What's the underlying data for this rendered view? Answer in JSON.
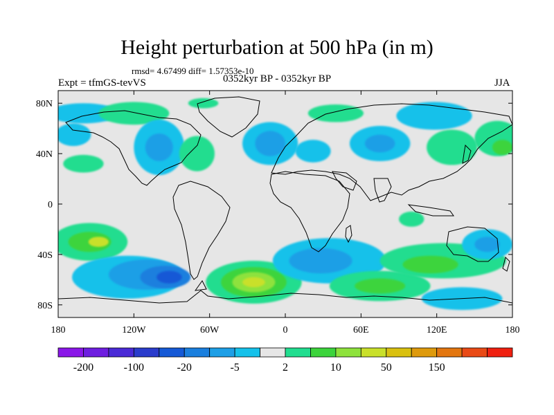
{
  "title": "Height perturbation at 500 hPa (in m)",
  "stats": "rmsd= 4.67499 diff= 1.57353e-10",
  "experiment": "Expt = tfmGS-tevVS",
  "period": "0352kyr BP - 0352kyr BP",
  "season": "JJA",
  "lat_ticks": [
    {
      "label": "80N",
      "lat": 80
    },
    {
      "label": "40N",
      "lat": 40
    },
    {
      "label": "0",
      "lat": 0
    },
    {
      "label": "40S",
      "lat": -40
    },
    {
      "label": "80S",
      "lat": -80
    }
  ],
  "lon_ticks": [
    {
      "label": "180",
      "lon": -180
    },
    {
      "label": "120W",
      "lon": -120
    },
    {
      "label": "60W",
      "lon": -60
    },
    {
      "label": "0",
      "lon": 0
    },
    {
      "label": "60E",
      "lon": 60
    },
    {
      "label": "120E",
      "lon": 120
    },
    {
      "label": "180",
      "lon": 180
    }
  ],
  "colorbar": {
    "colors": [
      "#8a17e8",
      "#6e1ee0",
      "#4a2ad6",
      "#2a3ccc",
      "#1559d6",
      "#1a7fde",
      "#1e9fe6",
      "#15c1ea",
      "#e6e6e6",
      "#21dd8f",
      "#3cd43c",
      "#8ee23c",
      "#c9e02a",
      "#d9c00f",
      "#de9a0c",
      "#e3760f",
      "#e94a16",
      "#ef2010"
    ],
    "labels": [
      {
        "text": "-200",
        "boundary": 1
      },
      {
        "text": "-100",
        "boundary": 3
      },
      {
        "text": "-20",
        "boundary": 5
      },
      {
        "text": "-5",
        "boundary": 7
      },
      {
        "text": "2",
        "boundary": 9
      },
      {
        "text": "10",
        "boundary": 11
      },
      {
        "text": "50",
        "boundary": 13
      },
      {
        "text": "150",
        "boundary": 15
      }
    ]
  },
  "anomalies": [
    {
      "lon": -160,
      "lat": 32,
      "rx": 16,
      "ry": 7,
      "color": "#21dd8f"
    },
    {
      "lon": -168,
      "lat": 55,
      "rx": 14,
      "ry": 9,
      "color": "#15c1ea"
    },
    {
      "lon": -160,
      "lat": 72,
      "rx": 28,
      "ry": 8,
      "color": "#15c1ea"
    },
    {
      "lon": -120,
      "lat": 72,
      "rx": 28,
      "ry": 9,
      "color": "#21dd8f"
    },
    {
      "lon": -100,
      "lat": 45,
      "rx": 20,
      "ry": 22,
      "color": "#15c1ea"
    },
    {
      "lon": -100,
      "lat": 45,
      "rx": 11,
      "ry": 11,
      "color": "#1e9fe6"
    },
    {
      "lon": -70,
      "lat": 40,
      "rx": 14,
      "ry": 14,
      "color": "#21dd8f"
    },
    {
      "lon": -65,
      "lat": 80,
      "rx": 12,
      "ry": 4,
      "color": "#21dd8f"
    },
    {
      "lon": -12,
      "lat": 48,
      "rx": 22,
      "ry": 17,
      "color": "#15c1ea"
    },
    {
      "lon": -12,
      "lat": 48,
      "rx": 12,
      "ry": 10,
      "color": "#1e9fe6"
    },
    {
      "lon": 22,
      "lat": 42,
      "rx": 14,
      "ry": 9,
      "color": "#15c1ea"
    },
    {
      "lon": 40,
      "lat": 72,
      "rx": 22,
      "ry": 7,
      "color": "#21dd8f"
    },
    {
      "lon": 75,
      "lat": 48,
      "rx": 24,
      "ry": 14,
      "color": "#15c1ea"
    },
    {
      "lon": 75,
      "lat": 48,
      "rx": 12,
      "ry": 7,
      "color": "#1e9fe6"
    },
    {
      "lon": 118,
      "lat": 70,
      "rx": 30,
      "ry": 11,
      "color": "#15c1ea"
    },
    {
      "lon": 132,
      "lat": 45,
      "rx": 20,
      "ry": 14,
      "color": "#21dd8f"
    },
    {
      "lon": 168,
      "lat": 52,
      "rx": 18,
      "ry": 14,
      "color": "#21dd8f"
    },
    {
      "lon": 172,
      "lat": 45,
      "rx": 8,
      "ry": 6,
      "color": "#3cd43c"
    },
    {
      "lon": -155,
      "lat": -30,
      "rx": 30,
      "ry": 15,
      "color": "#21dd8f"
    },
    {
      "lon": -155,
      "lat": -30,
      "rx": 17,
      "ry": 8,
      "color": "#3cd43c"
    },
    {
      "lon": -148,
      "lat": -30,
      "rx": 8,
      "ry": 4,
      "color": "#c9e02a"
    },
    {
      "lon": -125,
      "lat": -58,
      "rx": 44,
      "ry": 17,
      "color": "#15c1ea"
    },
    {
      "lon": -110,
      "lat": -56,
      "rx": 30,
      "ry": 12,
      "color": "#1e9fe6"
    },
    {
      "lon": -95,
      "lat": -58,
      "rx": 20,
      "ry": 9,
      "color": "#1a7fde"
    },
    {
      "lon": -92,
      "lat": -58,
      "rx": 10,
      "ry": 5,
      "color": "#1559d6"
    },
    {
      "lon": -25,
      "lat": -62,
      "rx": 38,
      "ry": 17,
      "color": "#21dd8f"
    },
    {
      "lon": -25,
      "lat": -62,
      "rx": 26,
      "ry": 12,
      "color": "#3cd43c"
    },
    {
      "lon": -25,
      "lat": -62,
      "rx": 17,
      "ry": 8,
      "color": "#8ee23c"
    },
    {
      "lon": -25,
      "lat": -62,
      "rx": 9,
      "ry": 4,
      "color": "#c9e02a"
    },
    {
      "lon": 35,
      "lat": -45,
      "rx": 45,
      "ry": 18,
      "color": "#15c1ea"
    },
    {
      "lon": 28,
      "lat": -45,
      "rx": 25,
      "ry": 10,
      "color": "#1e9fe6"
    },
    {
      "lon": 75,
      "lat": -65,
      "rx": 40,
      "ry": 12,
      "color": "#21dd8f"
    },
    {
      "lon": 75,
      "lat": -65,
      "rx": 20,
      "ry": 6,
      "color": "#3cd43c"
    },
    {
      "lon": 125,
      "lat": -45,
      "rx": 50,
      "ry": 14,
      "color": "#21dd8f"
    },
    {
      "lon": 115,
      "lat": -48,
      "rx": 22,
      "ry": 7,
      "color": "#3cd43c"
    },
    {
      "lon": 160,
      "lat": -32,
      "rx": 20,
      "ry": 12,
      "color": "#15c1ea"
    },
    {
      "lon": 160,
      "lat": -32,
      "rx": 10,
      "ry": 6,
      "color": "#1e9fe6"
    },
    {
      "lon": 140,
      "lat": -75,
      "rx": 32,
      "ry": 9,
      "color": "#15c1ea"
    },
    {
      "lon": 100,
      "lat": -12,
      "rx": 10,
      "ry": 6,
      "color": "#21dd8f"
    }
  ]
}
